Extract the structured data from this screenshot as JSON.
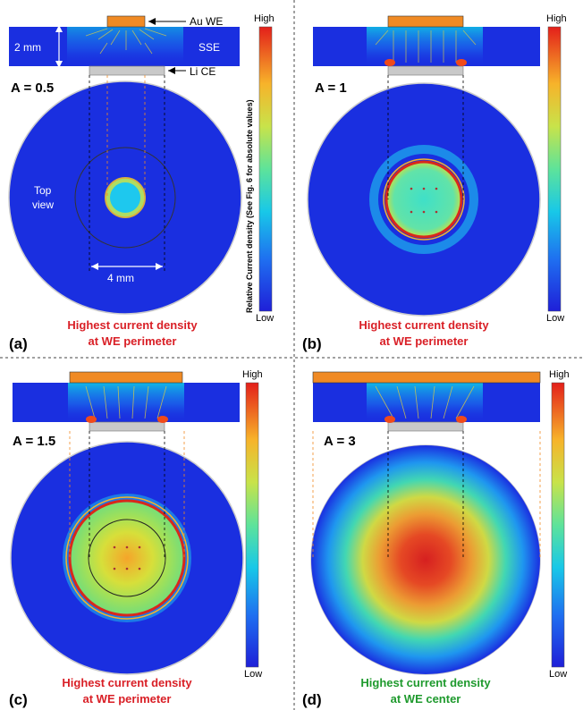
{
  "panels": [
    {
      "letter": "(a)",
      "a_label": "A = 0.5",
      "caption_line1": "Highest current density",
      "caption_line2": "at WE perimeter",
      "caption_color": "#d91f26",
      "legend_high": "High",
      "legend_low": "Low"
    },
    {
      "letter": "(b)",
      "a_label": "A = 1",
      "caption_line1": "Highest current density",
      "caption_line2": "at WE perimeter",
      "caption_color": "#d91f26",
      "legend_high": "High",
      "legend_low": "Low"
    },
    {
      "letter": "(c)",
      "a_label": "A = 1.5",
      "caption_line1": "Highest current density",
      "caption_line2": "at WE perimeter",
      "caption_color": "#d91f26",
      "legend_high": "High",
      "legend_low": "Low"
    },
    {
      "letter": "(d)",
      "a_label": "A = 3",
      "caption_line1": "Highest current density",
      "caption_line2": "at WE center",
      "caption_color": "#1f9a2e",
      "legend_high": "High",
      "legend_low": "Low"
    }
  ],
  "annotations": {
    "au_we": "Au WE",
    "li_ce": "Li CE",
    "sse": "SSE",
    "thickness": "2 mm",
    "top_view_line1": "Top",
    "top_view_line2": "view",
    "width": "4 mm",
    "colorbar_title": "Relative Current density (See Fig. 6 for absolute values)"
  },
  "colors": {
    "field_blue": "#1a2fe0",
    "electrode_orange": "#f08a24",
    "counter_gray": "#c9c9c9",
    "perimeter_red": "#d8281c"
  }
}
